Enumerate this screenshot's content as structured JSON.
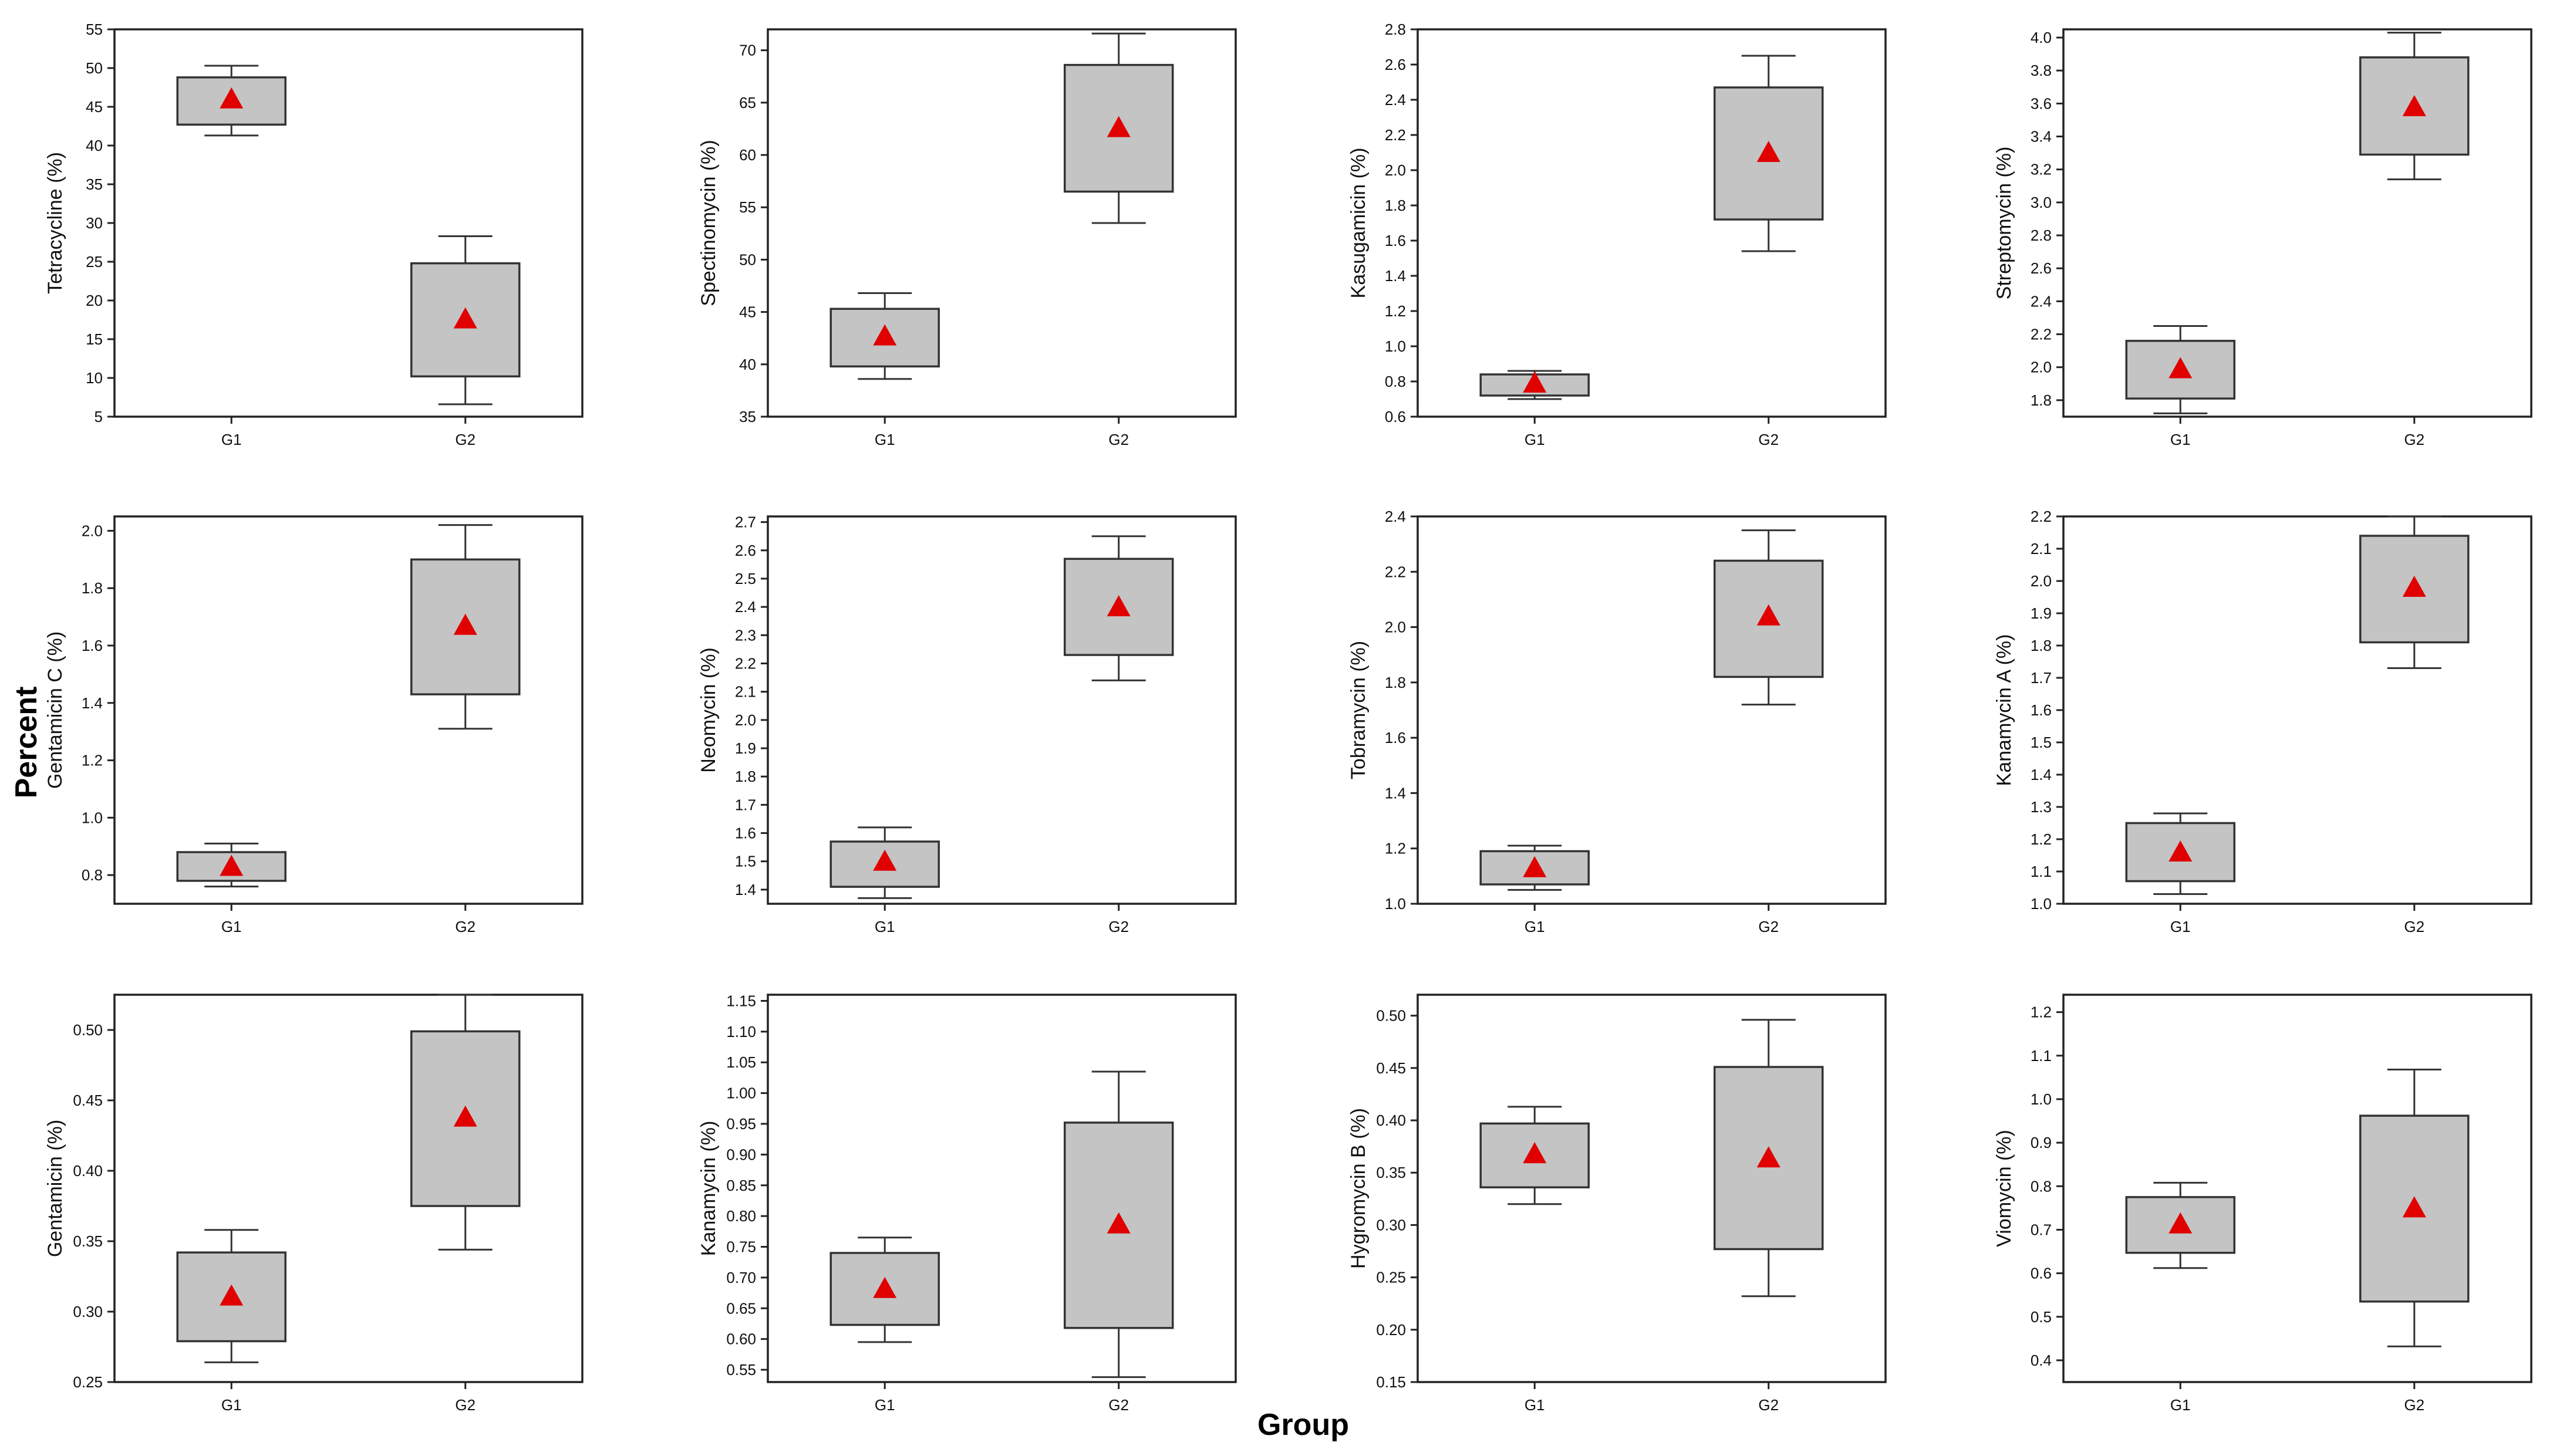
{
  "figure": {
    "ylabel_overall": "Percent",
    "xlabel_overall": "Group"
  },
  "colors": {
    "box_fill": "#c4c4c4",
    "box_stroke": "#333333",
    "mean_marker": "#e00000",
    "axis": "#222222"
  },
  "chart_data": [
    {
      "type": "box",
      "title": "",
      "xlabel": "",
      "ylabel": "Tetracycline (%)",
      "categories": [
        "G1",
        "G2"
      ],
      "ylim": [
        5,
        55
      ],
      "yticks": [
        5,
        10,
        15,
        20,
        25,
        30,
        35,
        40,
        45,
        50,
        55
      ],
      "yticklabels": [
        "5",
        "10",
        "15",
        "20",
        "25",
        "30",
        "35",
        "40",
        "45",
        "50",
        "55"
      ],
      "boxes": [
        {
          "category": "G1",
          "whisker_low": 41.3,
          "q1": 42.7,
          "q3": 48.8,
          "whisker_high": 50.3,
          "mean": 46.0
        },
        {
          "category": "G2",
          "whisker_low": 6.6,
          "q1": 10.2,
          "q3": 24.8,
          "whisker_high": 28.3,
          "mean": 17.6
        }
      ]
    },
    {
      "type": "box",
      "title": "",
      "xlabel": "",
      "ylabel": "Spectinomycin (%)",
      "categories": [
        "G1",
        "G2"
      ],
      "ylim": [
        35,
        72
      ],
      "yticks": [
        35,
        40,
        45,
        50,
        55,
        60,
        65,
        70
      ],
      "yticklabels": [
        "35",
        "40",
        "45",
        "50",
        "55",
        "60",
        "65",
        "70"
      ],
      "boxes": [
        {
          "category": "G1",
          "whisker_low": 38.6,
          "q1": 39.8,
          "q3": 45.3,
          "whisker_high": 46.8,
          "mean": 42.7
        },
        {
          "category": "G2",
          "whisker_low": 53.5,
          "q1": 56.5,
          "q3": 68.6,
          "whisker_high": 71.6,
          "mean": 62.6
        }
      ]
    },
    {
      "type": "box",
      "title": "",
      "xlabel": "",
      "ylabel": "Kasugamicin (%)",
      "categories": [
        "G1",
        "G2"
      ],
      "ylim": [
        0.6,
        2.8
      ],
      "yticks": [
        0.6,
        0.8,
        1.0,
        1.2,
        1.4,
        1.6,
        1.8,
        2.0,
        2.2,
        2.4,
        2.6,
        2.8
      ],
      "yticklabels": [
        "0.6",
        "0.8",
        "1.0",
        "1.2",
        "1.4",
        "1.6",
        "1.8",
        "2.0",
        "2.2",
        "2.4",
        "2.6",
        "2.8"
      ],
      "boxes": [
        {
          "category": "G1",
          "whisker_low": 0.7,
          "q1": 0.72,
          "q3": 0.84,
          "whisker_high": 0.86,
          "mean": 0.79
        },
        {
          "category": "G2",
          "whisker_low": 1.54,
          "q1": 1.72,
          "q3": 2.47,
          "whisker_high": 2.65,
          "mean": 2.1
        }
      ]
    },
    {
      "type": "box",
      "title": "",
      "xlabel": "",
      "ylabel": "Streptomycin (%)",
      "categories": [
        "G1",
        "G2"
      ],
      "ylim": [
        1.7,
        4.05
      ],
      "yticks": [
        1.8,
        2.0,
        2.2,
        2.4,
        2.6,
        2.8,
        3.0,
        3.2,
        3.4,
        3.6,
        3.8,
        4.0
      ],
      "yticklabels": [
        "1.8",
        "2.0",
        "2.2",
        "2.4",
        "2.6",
        "2.8",
        "3.0",
        "3.2",
        "3.4",
        "3.6",
        "3.8",
        "4.0"
      ],
      "boxes": [
        {
          "category": "G1",
          "whisker_low": 1.72,
          "q1": 1.81,
          "q3": 2.16,
          "whisker_high": 2.25,
          "mean": 1.99
        },
        {
          "category": "G2",
          "whisker_low": 3.14,
          "q1": 3.29,
          "q3": 3.88,
          "whisker_high": 4.03,
          "mean": 3.58
        }
      ]
    },
    {
      "type": "box",
      "title": "",
      "xlabel": "",
      "ylabel": "Gentamicin C (%)",
      "categories": [
        "G1",
        "G2"
      ],
      "ylim": [
        0.7,
        2.05
      ],
      "yticks": [
        0.8,
        1.0,
        1.2,
        1.4,
        1.6,
        1.8,
        2.0
      ],
      "yticklabels": [
        "0.8",
        "1.0",
        "1.2",
        "1.4",
        "1.6",
        "1.8",
        "2.0"
      ],
      "boxes": [
        {
          "category": "G1",
          "whisker_low": 0.76,
          "q1": 0.78,
          "q3": 0.88,
          "whisker_high": 0.91,
          "mean": 0.83
        },
        {
          "category": "G2",
          "whisker_low": 1.31,
          "q1": 1.43,
          "q3": 1.9,
          "whisker_high": 2.02,
          "mean": 1.67
        }
      ]
    },
    {
      "type": "box",
      "title": "",
      "xlabel": "",
      "ylabel": "Neomycin (%)",
      "categories": [
        "G1",
        "G2"
      ],
      "ylim": [
        1.35,
        2.72
      ],
      "yticks": [
        1.4,
        1.5,
        1.6,
        1.7,
        1.8,
        1.9,
        2.0,
        2.1,
        2.2,
        2.3,
        2.4,
        2.5,
        2.6,
        2.7
      ],
      "yticklabels": [
        "1.4",
        "1.5",
        "1.6",
        "1.7",
        "1.8",
        "1.9",
        "2.0",
        "2.1",
        "2.2",
        "2.3",
        "2.4",
        "2.5",
        "2.6",
        "2.7"
      ],
      "boxes": [
        {
          "category": "G1",
          "whisker_low": 1.37,
          "q1": 1.41,
          "q3": 1.57,
          "whisker_high": 1.62,
          "mean": 1.5
        },
        {
          "category": "G2",
          "whisker_low": 2.14,
          "q1": 2.23,
          "q3": 2.57,
          "whisker_high": 2.65,
          "mean": 2.4
        }
      ]
    },
    {
      "type": "box",
      "title": "",
      "xlabel": "",
      "ylabel": "Tobramycin (%)",
      "categories": [
        "G1",
        "G2"
      ],
      "ylim": [
        1.0,
        2.4
      ],
      "yticks": [
        1.0,
        1.2,
        1.4,
        1.6,
        1.8,
        2.0,
        2.2,
        2.4
      ],
      "yticklabels": [
        "1.0",
        "1.2",
        "1.4",
        "1.6",
        "1.8",
        "2.0",
        "2.2",
        "2.4"
      ],
      "boxes": [
        {
          "category": "G1",
          "whisker_low": 1.05,
          "q1": 1.07,
          "q3": 1.19,
          "whisker_high": 1.21,
          "mean": 1.13
        },
        {
          "category": "G2",
          "whisker_low": 1.72,
          "q1": 1.82,
          "q3": 2.24,
          "whisker_high": 2.35,
          "mean": 2.04
        }
      ]
    },
    {
      "type": "box",
      "title": "",
      "xlabel": "",
      "ylabel": "Kanamycin A (%)",
      "categories": [
        "G1",
        "G2"
      ],
      "ylim": [
        1.0,
        2.2
      ],
      "yticks": [
        1.0,
        1.1,
        1.2,
        1.3,
        1.4,
        1.5,
        1.6,
        1.7,
        1.8,
        1.9,
        2.0,
        2.1,
        2.2
      ],
      "yticklabels": [
        "1.0",
        "1.1",
        "1.2",
        "1.3",
        "1.4",
        "1.5",
        "1.6",
        "1.7",
        "1.8",
        "1.9",
        "2.0",
        "2.1",
        "2.2"
      ],
      "boxes": [
        {
          "category": "G1",
          "whisker_low": 1.03,
          "q1": 1.07,
          "q3": 1.25,
          "whisker_high": 1.28,
          "mean": 1.16
        },
        {
          "category": "G2",
          "whisker_low": 1.73,
          "q1": 1.81,
          "q3": 2.14,
          "whisker_high": 2.2,
          "mean": 1.98
        }
      ]
    },
    {
      "type": "box",
      "title": "",
      "xlabel": "",
      "ylabel": "Gentamicin (%)",
      "categories": [
        "G1",
        "G2"
      ],
      "ylim": [
        0.25,
        0.525
      ],
      "yticks": [
        0.25,
        0.3,
        0.35,
        0.4,
        0.45,
        0.5
      ],
      "yticklabels": [
        "0.25",
        "0.30",
        "0.35",
        "0.40",
        "0.45",
        "0.50"
      ],
      "boxes": [
        {
          "category": "G1",
          "whisker_low": 0.264,
          "q1": 0.279,
          "q3": 0.342,
          "whisker_high": 0.358,
          "mean": 0.311
        },
        {
          "category": "G2",
          "whisker_low": 0.344,
          "q1": 0.375,
          "q3": 0.499,
          "whisker_high": 0.525,
          "mean": 0.438
        }
      ]
    },
    {
      "type": "box",
      "title": "",
      "xlabel": "",
      "ylabel": "Kanamycin (%)",
      "categories": [
        "G1",
        "G2"
      ],
      "ylim": [
        0.53,
        1.16
      ],
      "yticks": [
        0.55,
        0.6,
        0.65,
        0.7,
        0.75,
        0.8,
        0.85,
        0.9,
        0.95,
        1.0,
        1.05,
        1.1,
        1.15
      ],
      "yticklabels": [
        "0.55",
        "0.60",
        "0.65",
        "0.70",
        "0.75",
        "0.80",
        "0.85",
        "0.90",
        "0.95",
        "1.00",
        "1.05",
        "1.10",
        "1.15"
      ],
      "boxes": [
        {
          "category": "G1",
          "whisker_low": 0.595,
          "q1": 0.623,
          "q3": 0.74,
          "whisker_high": 0.765,
          "mean": 0.682
        },
        {
          "category": "G2",
          "whisker_low": 0.538,
          "q1": 0.618,
          "q3": 0.952,
          "whisker_high": 1.035,
          "mean": 0.787
        }
      ]
    },
    {
      "type": "box",
      "title": "",
      "xlabel": "",
      "ylabel": "Hygromycin B (%)",
      "categories": [
        "G1",
        "G2"
      ],
      "ylim": [
        0.15,
        0.52
      ],
      "yticks": [
        0.15,
        0.2,
        0.25,
        0.3,
        0.35,
        0.4,
        0.45,
        0.5
      ],
      "yticklabels": [
        "0.15",
        "0.20",
        "0.25",
        "0.30",
        "0.35",
        "0.40",
        "0.45",
        "0.50"
      ],
      "boxes": [
        {
          "category": "G1",
          "whisker_low": 0.32,
          "q1": 0.336,
          "q3": 0.397,
          "whisker_high": 0.413,
          "mean": 0.368
        },
        {
          "category": "G2",
          "whisker_low": 0.232,
          "q1": 0.277,
          "q3": 0.451,
          "whisker_high": 0.496,
          "mean": 0.364
        }
      ]
    },
    {
      "type": "box",
      "title": "",
      "xlabel": "",
      "ylabel": "Viomycin (%)",
      "categories": [
        "G1",
        "G2"
      ],
      "ylim": [
        0.35,
        1.24
      ],
      "yticks": [
        0.4,
        0.5,
        0.6,
        0.7,
        0.8,
        0.9,
        1.0,
        1.1,
        1.2
      ],
      "yticklabels": [
        "0.4",
        "0.5",
        "0.6",
        "0.7",
        "0.8",
        "0.9",
        "1.0",
        "1.1",
        "1.2"
      ],
      "boxes": [
        {
          "category": "G1",
          "whisker_low": 0.612,
          "q1": 0.647,
          "q3": 0.775,
          "whisker_high": 0.808,
          "mean": 0.713
        },
        {
          "category": "G2",
          "whisker_low": 0.432,
          "q1": 0.535,
          "q3": 0.962,
          "whisker_high": 1.068,
          "mean": 0.75
        }
      ]
    }
  ]
}
